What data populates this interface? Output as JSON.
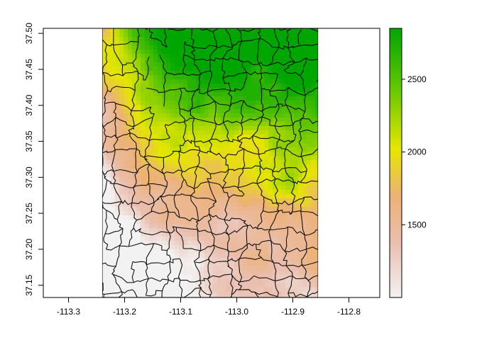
{
  "map": {
    "type": "raster-with-polygons",
    "x_axis": {
      "range": [
        -113.345,
        -112.745
      ],
      "ticks": [
        {
          "value": -113.3,
          "label": "-113.3"
        },
        {
          "value": -113.2,
          "label": "-113.2"
        },
        {
          "value": -113.1,
          "label": "-113.1"
        },
        {
          "value": -113.0,
          "label": "-113.0"
        },
        {
          "value": -112.9,
          "label": "-112.9"
        },
        {
          "value": -112.8,
          "label": "-112.8"
        }
      ]
    },
    "y_axis": {
      "range": [
        37.133,
        37.507
      ],
      "ticks": [
        {
          "value": 37.15,
          "label": "37.15"
        },
        {
          "value": 37.2,
          "label": "37.20"
        },
        {
          "value": 37.25,
          "label": "37.25"
        },
        {
          "value": 37.3,
          "label": "37.30"
        },
        {
          "value": 37.35,
          "label": "37.35"
        },
        {
          "value": 37.4,
          "label": "37.40"
        },
        {
          "value": 37.45,
          "label": "37.45"
        },
        {
          "value": 37.5,
          "label": "37.50"
        }
      ]
    },
    "raster_extent": {
      "xmin": -113.24,
      "xmax": -112.855,
      "ymin": 37.133,
      "ymax": 37.507
    },
    "legend": {
      "range": [
        1000,
        2850
      ],
      "ticks": [
        {
          "value": 1500,
          "label": "1500"
        },
        {
          "value": 2000,
          "label": "2000"
        },
        {
          "value": 2500,
          "label": "2500"
        }
      ],
      "colors": [
        "#f2f2f2",
        "#ecb176",
        "#e6e600",
        "#63c600",
        "#00a600"
      ]
    }
  }
}
